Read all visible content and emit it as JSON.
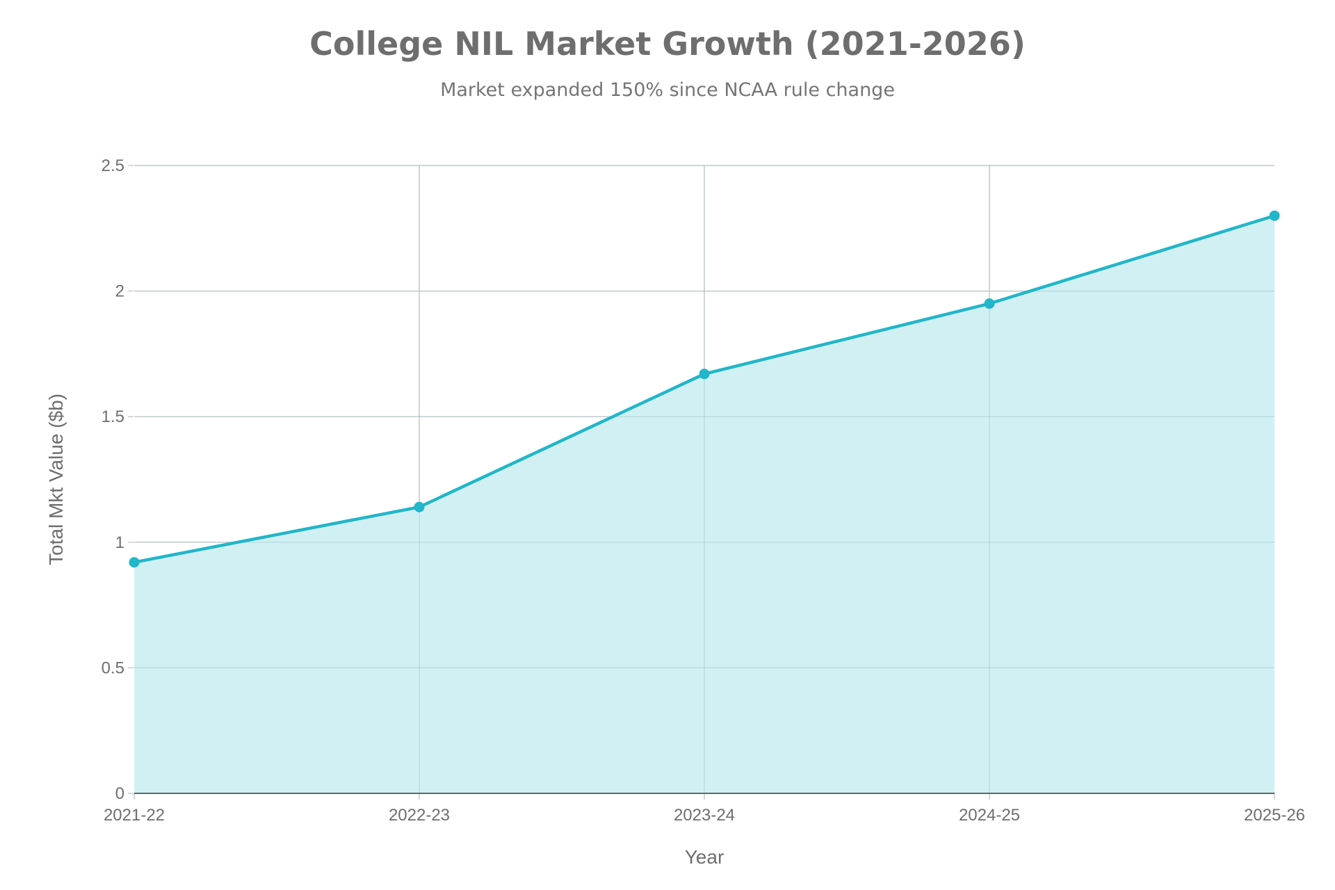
{
  "title": "College NIL Market Growth (2021-2026)",
  "subtitle": "Market expanded 150% since NCAA rule change",
  "colors": {
    "line": "#21b6c9",
    "area": "#d1f0f4",
    "grid": "#d9d9d9",
    "text": "#6e6e6e",
    "axis": "#5a6a6a"
  },
  "chart_data": {
    "type": "area",
    "categories": [
      "2021-22",
      "2022-23",
      "2023-24",
      "2024-25",
      "2025-26"
    ],
    "series": [
      {
        "values": [
          0.92,
          1.14,
          1.67,
          1.95,
          2.3
        ]
      }
    ],
    "xlabel": "Year",
    "ylabel": "Total Mkt Value ($b)",
    "ylim": [
      0,
      2.5
    ],
    "yticks": [
      "0",
      "0.5",
      "1",
      "1.5",
      "2",
      "2.5"
    ],
    "grid": true,
    "markers": true
  }
}
